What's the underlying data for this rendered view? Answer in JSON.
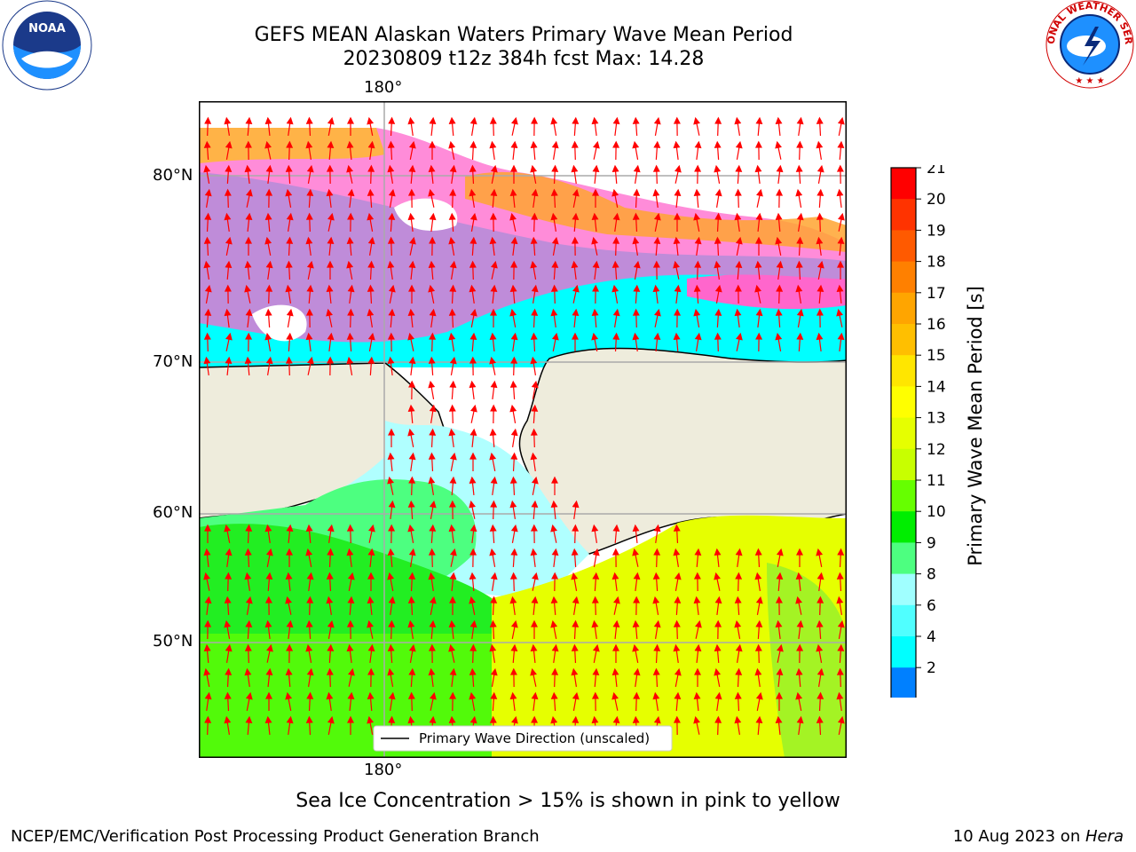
{
  "title": {
    "line1": "GEFS MEAN Alaskan Waters Primary Wave Mean Period",
    "line2": "20230809 t12z 384h fcst   Max: 14.28"
  },
  "axes": {
    "top_lon": "180°",
    "bottom_lon": "180°",
    "lat_labels": [
      "80°N",
      "70°N",
      "60°N",
      "50°N"
    ]
  },
  "legend": {
    "label": "Primary Wave Direction (unscaled)"
  },
  "colorbar": {
    "label": "Primary Wave Mean Period [s]",
    "ticks": [
      "21",
      "20",
      "19",
      "18",
      "17",
      "16",
      "15",
      "14",
      "13",
      "12",
      "11",
      "10",
      "9",
      "8",
      "6",
      "4",
      "2"
    ],
    "colors": [
      "#ff0000",
      "#ff3300",
      "#ff5a00",
      "#ff8000",
      "#ffa500",
      "#ffbf00",
      "#ffe600",
      "#ffff00",
      "#e6ff00",
      "#c8ff00",
      "#66ff00",
      "#00ee00",
      "#4dff80",
      "#a0ffff",
      "#50ffff",
      "#00ffff",
      "#0080ff"
    ],
    "extend_color": "#0000ff"
  },
  "note": "Sea Ice Concentration > 15% is shown in pink to yellow",
  "footer": {
    "left": "NCEP/EMC/Verification Post Processing Product Generation Branch",
    "right_prefix": "10 Aug 2023 on ",
    "right_host": "Hera"
  },
  "logos": {
    "left": "NOAA",
    "right": "NATIONAL WEATHER SERVICE"
  }
}
